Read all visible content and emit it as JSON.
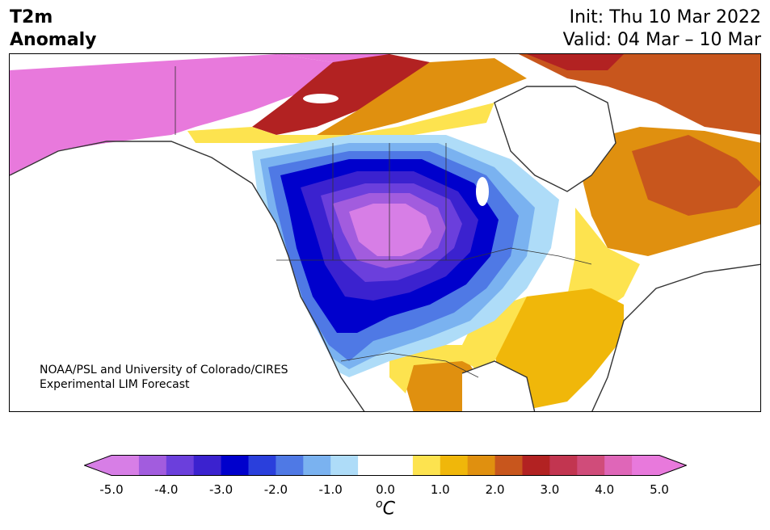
{
  "header": {
    "title_line1": "T2m",
    "title_line2": "Anomaly",
    "init": "Init: Thu 10 Mar 2022",
    "valid": "Valid: 04 Mar – 10 Mar"
  },
  "credit": {
    "line1": "NOAA/PSL and University of Colorado/CIRES",
    "line2": "Experimental LIM Forecast"
  },
  "colorbar": {
    "unit_sup": "o",
    "unit_main": "C",
    "ticks": [
      "-5.0",
      "-4.0",
      "-3.0",
      "-2.0",
      "-1.0",
      "0.0",
      "1.0",
      "2.0",
      "3.0",
      "4.0",
      "5.0"
    ],
    "colors": [
      "#d77ee6",
      "#a25cde",
      "#6b3fdc",
      "#3b22cf",
      "#0000cc",
      "#2a3fdc",
      "#4f79e5",
      "#7ab2f0",
      "#aedcf8",
      "#ffffff",
      "#ffffff",
      "#fde34f",
      "#f0b70a",
      "#e0900f",
      "#c8561d",
      "#b22222",
      "#c23550",
      "#d04c7a",
      "#df66b8",
      "#e879dc"
    ],
    "under_color": "#d77ee6",
    "over_color": "#e879dc"
  },
  "chart_data": {
    "type": "heatmap",
    "title": "T2m Anomaly",
    "variable": "2-meter temperature anomaly",
    "units": "°C",
    "range": [
      -5.0,
      5.0
    ],
    "region": "North America",
    "regions": [
      {
        "area": "Alaska",
        "anomaly": "+5 or more"
      },
      {
        "area": "Yukon / northwest Canada",
        "anomaly": "+1 to +4"
      },
      {
        "area": "Canadian Arctic",
        "anomaly": "+2 to +4"
      },
      {
        "area": "Quebec / Labrador",
        "anomaly": "+2 to +3"
      },
      {
        "area": "Northern Plains / Montana / Dakotas",
        "anomaly": "-4 to -5"
      },
      {
        "area": "Great Basin / Intermountain West",
        "anomaly": "-3 to -4"
      },
      {
        "area": "California / Pacific Coast",
        "anomaly": "-2 to -3"
      },
      {
        "area": "Upper Midwest",
        "anomaly": "-1 to -3"
      },
      {
        "area": "Southeast US / East Coast",
        "anomaly": "+1 to +2"
      },
      {
        "area": "Northern Mexico",
        "anomaly": "+1 to +2"
      }
    ]
  }
}
